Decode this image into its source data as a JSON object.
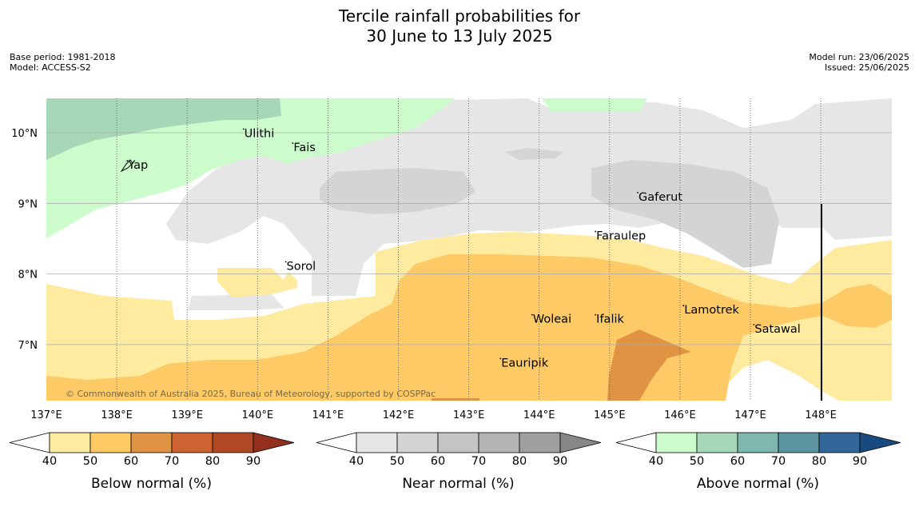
{
  "header": {
    "title_line1": "Tercile rainfall probabilities for",
    "title_line2": "30 June to 13 July 2025",
    "base_period": "Base period: 1981-2018",
    "model": "Model: ACCESS-S2",
    "model_run": "Model run: 23/06/2025",
    "issued": "Issued: 25/06/2025"
  },
  "map": {
    "lon_range": [
      137,
      149
    ],
    "lat_range": [
      6.2,
      10.5
    ],
    "longitude_labels": [
      "137°E",
      "138°E",
      "139°E",
      "140°E",
      "141°E",
      "142°E",
      "143°E",
      "144°E",
      "145°E",
      "146°E",
      "147°E",
      "148°E"
    ],
    "latitude_labels": [
      "10°N",
      "9°N",
      "8°N",
      "7°N"
    ],
    "places": [
      {
        "name": "Ulithi",
        "lon": 139.8,
        "lat": 9.95
      },
      {
        "name": "Fais",
        "lon": 140.5,
        "lat": 9.75
      },
      {
        "name": "Yap",
        "lon": 138.15,
        "lat": 9.5
      },
      {
        "name": "Gaferut",
        "lon": 145.4,
        "lat": 9.05
      },
      {
        "name": "Faraulep",
        "lon": 144.8,
        "lat": 8.5
      },
      {
        "name": "Sorol",
        "lon": 140.4,
        "lat": 8.07
      },
      {
        "name": "Lamotrek",
        "lon": 146.05,
        "lat": 7.45
      },
      {
        "name": "Woleai",
        "lon": 143.9,
        "lat": 7.32
      },
      {
        "name": "Ifalik",
        "lon": 144.8,
        "lat": 7.32
      },
      {
        "name": "Satawal",
        "lon": 147.05,
        "lat": 7.18
      },
      {
        "name": "Eauripik",
        "lon": 143.45,
        "lat": 6.7
      }
    ],
    "copyright": "© Commonwealth of Australia 2025, Bureau of Meteorology, supported by COSPPac"
  },
  "legends": [
    {
      "title": "Below normal (%)",
      "ticks": [
        "40",
        "50",
        "60",
        "70",
        "80",
        "90"
      ],
      "colors": [
        "#ffeba0",
        "#fdca66",
        "#e09343",
        "#cd6330",
        "#b04826",
        "#922f1d"
      ]
    },
    {
      "title": "Near normal (%)",
      "ticks": [
        "40",
        "50",
        "60",
        "70",
        "80",
        "90"
      ],
      "colors": [
        "#e6e6e6",
        "#d4d4d4",
        "#c4c4c4",
        "#b4b4b4",
        "#9f9f9f",
        "#878787"
      ]
    },
    {
      "title": "Above normal (%)",
      "ticks": [
        "40",
        "50",
        "60",
        "70",
        "80",
        "90"
      ],
      "colors": [
        "#ccfccc",
        "#a6d8b8",
        "#80b6b0",
        "#5b93a0",
        "#336699",
        "#184a80"
      ]
    }
  ]
}
